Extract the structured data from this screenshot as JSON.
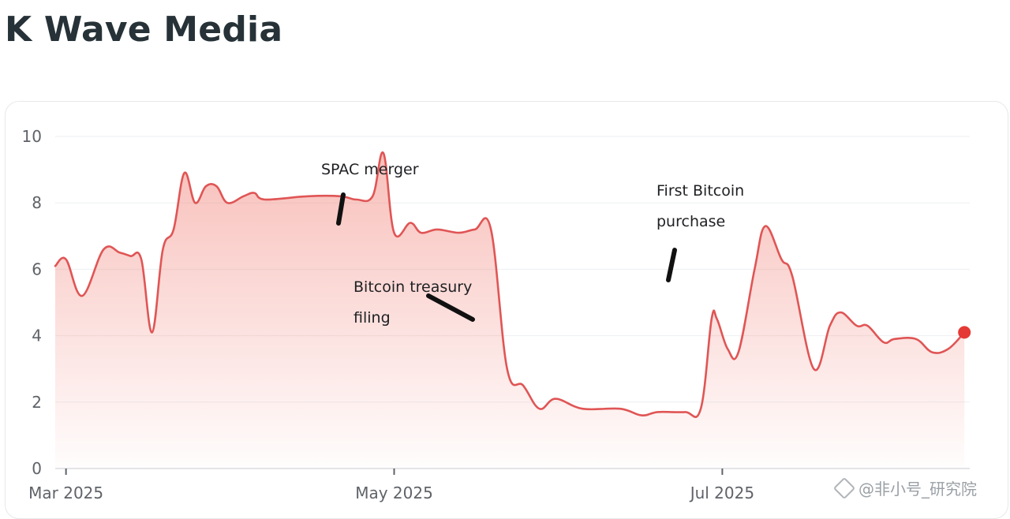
{
  "title": "K Wave Media",
  "watermark": "@非小号_研究院",
  "chart_data": {
    "type": "area",
    "title": "",
    "xlabel": "",
    "ylabel": "",
    "ylim": [
      0,
      10
    ],
    "y_ticks": [
      0,
      2,
      4,
      6,
      8,
      10
    ],
    "x_ticks": [
      {
        "label": "Mar 2025",
        "date": "2025-03-01"
      },
      {
        "label": "May 2025",
        "date": "2025-05-01"
      },
      {
        "label": "Jul 2025",
        "date": "2025-07-01"
      }
    ],
    "xlim": [
      "2025-02-27",
      "2025-08-16"
    ],
    "grid": true,
    "line_color": "#e05555",
    "fill_color": "#f28b82",
    "series": [
      {
        "name": "",
        "points": [
          [
            "2025-02-27",
            6.1
          ],
          [
            "2025-03-01",
            6.3
          ],
          [
            "2025-03-04",
            5.2
          ],
          [
            "2025-03-08",
            6.6
          ],
          [
            "2025-03-11",
            6.5
          ],
          [
            "2025-03-13",
            6.4
          ],
          [
            "2025-03-15",
            6.3
          ],
          [
            "2025-03-17",
            4.1
          ],
          [
            "2025-03-19",
            6.6
          ],
          [
            "2025-03-21",
            7.2
          ],
          [
            "2025-03-23",
            8.9
          ],
          [
            "2025-03-25",
            8.0
          ],
          [
            "2025-03-27",
            8.5
          ],
          [
            "2025-03-29",
            8.5
          ],
          [
            "2025-03-31",
            8.0
          ],
          [
            "2025-04-03",
            8.2
          ],
          [
            "2025-04-05",
            8.3
          ],
          [
            "2025-04-07",
            8.1
          ],
          [
            "2025-04-15",
            8.2
          ],
          [
            "2025-04-21",
            8.2
          ],
          [
            "2025-04-24",
            8.1
          ],
          [
            "2025-04-27",
            8.2
          ],
          [
            "2025-04-29",
            9.5
          ],
          [
            "2025-05-01",
            7.1
          ],
          [
            "2025-05-04",
            7.4
          ],
          [
            "2025-05-06",
            7.1
          ],
          [
            "2025-05-09",
            7.2
          ],
          [
            "2025-05-13",
            7.1
          ],
          [
            "2025-05-16",
            7.2
          ],
          [
            "2025-05-19",
            7.2
          ],
          [
            "2025-05-22",
            3.0
          ],
          [
            "2025-05-25",
            2.5
          ],
          [
            "2025-05-28",
            1.8
          ],
          [
            "2025-05-31",
            2.1
          ],
          [
            "2025-06-05",
            1.8
          ],
          [
            "2025-06-12",
            1.8
          ],
          [
            "2025-06-16",
            1.6
          ],
          [
            "2025-06-19",
            1.7
          ],
          [
            "2025-06-24",
            1.7
          ],
          [
            "2025-06-27",
            1.8
          ],
          [
            "2025-06-29",
            4.5
          ],
          [
            "2025-07-02",
            3.6
          ],
          [
            "2025-07-04",
            3.5
          ],
          [
            "2025-07-07",
            6.0
          ],
          [
            "2025-07-09",
            7.3
          ],
          [
            "2025-07-12",
            6.3
          ],
          [
            "2025-07-14",
            5.8
          ],
          [
            "2025-07-18",
            3.0
          ],
          [
            "2025-07-21",
            4.3
          ],
          [
            "2025-07-23",
            4.7
          ],
          [
            "2025-07-26",
            4.3
          ],
          [
            "2025-07-28",
            4.3
          ],
          [
            "2025-07-31",
            3.8
          ],
          [
            "2025-08-02",
            3.9
          ],
          [
            "2025-08-06",
            3.9
          ],
          [
            "2025-08-09",
            3.5
          ],
          [
            "2025-08-12",
            3.6
          ],
          [
            "2025-08-15",
            4.1
          ],
          [
            "2025-06-30",
            4.5
          ]
        ]
      }
    ],
    "annotations": [
      {
        "lines": [
          "SPAC merger"
        ],
        "date": "2025-05-20",
        "value": 7.4
      },
      {
        "lines": [
          "Bitcoin treasury",
          "filing"
        ],
        "date": "2025-06-29",
        "value": 4.5
      },
      {
        "lines": [
          "First Bitcoin",
          "purchase"
        ],
        "date": "2025-07-22",
        "value": 5.6
      }
    ]
  }
}
